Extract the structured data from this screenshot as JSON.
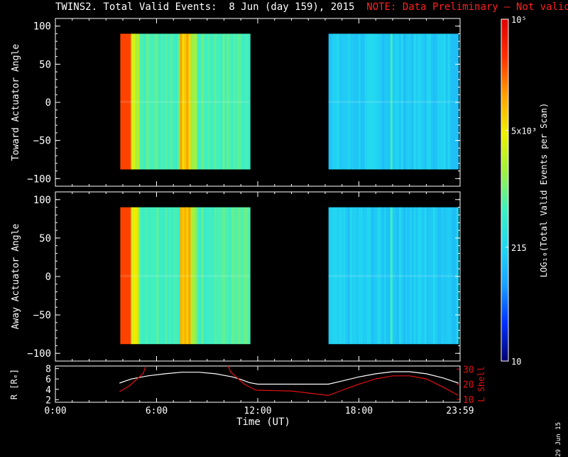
{
  "header": {
    "title": "TWINS2. Total Valid Events:  8 Jun (day 159), 2015",
    "note": "NOTE: Data Preliminary – Not validated"
  },
  "footer": {
    "date_stamp": "29 Jun 15"
  },
  "colors": {
    "axes": "#ffffff",
    "note": "#ff2020",
    "lshell": "#e01010",
    "radius": "#ffffff"
  },
  "chart_data": [
    {
      "type": "heatmap",
      "ylabel": "Toward Actuator Angle",
      "xlim": [
        0,
        24
      ],
      "ylim": [
        -110,
        110
      ],
      "ytick_labels": [
        "100",
        "50",
        "0",
        "−50",
        "−100"
      ],
      "ytick_values": [
        100,
        50,
        0,
        -50,
        -100
      ],
      "data_blocks": [
        {
          "t_start": 3.85,
          "t_end": 11.5,
          "angle_min": -88,
          "angle_max": 90
        },
        {
          "t_start": 16.2,
          "t_end": 23.9,
          "angle_min": -88,
          "angle_max": 90
        }
      ]
    },
    {
      "type": "heatmap",
      "ylabel": "Away Actuator Angle",
      "xlim": [
        0,
        24
      ],
      "ylim": [
        -110,
        110
      ],
      "ytick_labels": [
        "100",
        "50",
        "0",
        "−50",
        "−100"
      ],
      "ytick_values": [
        100,
        50,
        0,
        -50,
        -100
      ],
      "data_blocks": [
        {
          "t_start": 3.85,
          "t_end": 11.5,
          "angle_min": -88,
          "angle_max": 90
        },
        {
          "t_start": 16.2,
          "t_end": 23.9,
          "angle_min": -88,
          "angle_max": 90
        }
      ]
    },
    {
      "type": "line",
      "xlabel": "Time (UT)",
      "xlim": [
        0,
        24
      ],
      "xtick_labels": [
        "0:00",
        "6:00",
        "12:00",
        "18:00",
        "23:59"
      ],
      "xtick_values": [
        0,
        6,
        12,
        18,
        24
      ],
      "ylabel_left": "R [Rₑ]",
      "ylim_left": [
        1.5,
        8.5
      ],
      "ytick_labels_left": [
        "8",
        "6",
        "4",
        "2"
      ],
      "ytick_values_left": [
        8,
        6,
        4,
        2
      ],
      "ylabel_right": "L Shell",
      "ylim_right": [
        8,
        32
      ],
      "ytick_labels_right": [
        "30",
        "20",
        "10"
      ],
      "ytick_values_right": [
        30,
        20,
        10
      ],
      "series": [
        {
          "name": "R",
          "axis": "left",
          "x": [
            3.8,
            4.5,
            5.5,
            6.5,
            7.5,
            8.5,
            9.5,
            10.5,
            11.0,
            11.5,
            12.0,
            16.2,
            17.0,
            18.0,
            19.0,
            20.0,
            21.0,
            22.0,
            23.0,
            23.9
          ],
          "y": [
            5.2,
            6.0,
            6.6,
            7.0,
            7.3,
            7.3,
            7.0,
            6.4,
            5.9,
            5.3,
            5.0,
            5.0,
            5.6,
            6.4,
            7.0,
            7.4,
            7.4,
            7.0,
            6.2,
            5.2
          ]
        },
        {
          "name": "L Shell",
          "axis": "right",
          "segments": [
            {
              "x": [
                3.8,
                4.4,
                5.2,
                5.4
              ],
              "y": [
                15,
                19,
                27,
                33
              ]
            },
            {
              "x": [
                10.2,
                10.4,
                11.2,
                11.9
              ],
              "y": [
                33,
                28,
                20,
                16
              ]
            },
            {
              "x": [
                11.9,
                14.0,
                16.2,
                17.0,
                18.0,
                19.0,
                20.0,
                21.0,
                22.0,
                23.0,
                23.9
              ],
              "y": [
                16,
                15.5,
                12.5,
                16,
                20,
                23.5,
                25.5,
                25.5,
                23.5,
                18,
                12.5
              ]
            }
          ]
        }
      ]
    }
  ],
  "colorbar": {
    "label": "LOG₁₀(Total Valid Events per Scan)",
    "ticks": [
      {
        "label": "10⁵",
        "value": 100000
      },
      {
        "label": "5x10³",
        "value": 5000
      },
      {
        "label": "215",
        "value": 215
      },
      {
        "label": "10",
        "value": 10
      }
    ],
    "range": [
      10,
      100000
    ],
    "colors": [
      "#00006e",
      "#0030ff",
      "#1aa0ff",
      "#22d8f0",
      "#40f0c0",
      "#a0f040",
      "#f0f000",
      "#ffa000",
      "#ff3000",
      "#e00000"
    ]
  }
}
